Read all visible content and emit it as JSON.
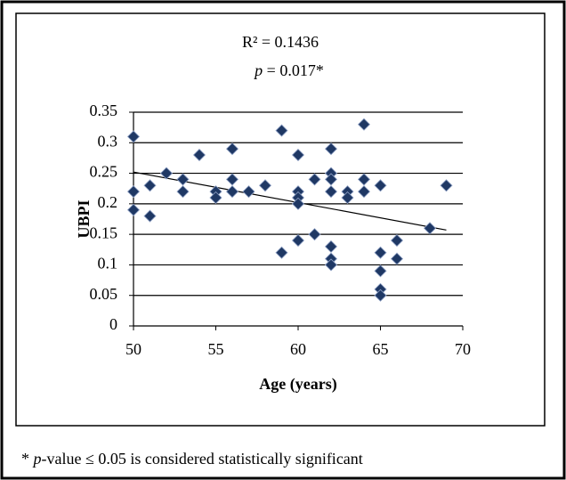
{
  "chart_data": {
    "type": "scatter",
    "annotation_r2": "R² = 0.1436",
    "annotation_p": [
      "p",
      " = 0.017*"
    ],
    "x_label": "Age (years)",
    "y_label": "UBPI",
    "xlim": [
      50,
      70
    ],
    "xticks": [
      50,
      55,
      60,
      65,
      70
    ],
    "ylim": [
      0,
      0.35
    ],
    "yticks": [
      0,
      0.05,
      0.1,
      0.15,
      0.2,
      0.25,
      0.3,
      0.35
    ],
    "grid": true,
    "color": "#1f3864",
    "x": [
      50,
      50,
      50,
      51,
      51,
      52,
      53,
      53,
      54,
      55,
      55,
      56,
      56,
      56,
      57,
      58,
      59,
      59,
      60,
      60,
      60,
      60,
      60,
      61,
      61,
      62,
      62,
      62,
      62,
      62,
      62,
      62,
      63,
      63,
      64,
      64,
      64,
      65,
      65,
      65,
      65,
      65,
      66,
      66,
      68,
      69
    ],
    "y": [
      0.31,
      0.22,
      0.19,
      0.23,
      0.18,
      0.25,
      0.24,
      0.22,
      0.28,
      0.22,
      0.21,
      0.29,
      0.24,
      0.22,
      0.22,
      0.23,
      0.32,
      0.12,
      0.28,
      0.22,
      0.21,
      0.2,
      0.14,
      0.24,
      0.15,
      0.29,
      0.25,
      0.24,
      0.22,
      0.13,
      0.11,
      0.1,
      0.22,
      0.21,
      0.33,
      0.24,
      0.22,
      0.23,
      0.12,
      0.09,
      0.06,
      0.05,
      0.14,
      0.11,
      0.16,
      0.23
    ],
    "trendline": {
      "x": [
        50,
        69
      ],
      "y": [
        0.252,
        0.157
      ]
    }
  },
  "footnote": [
    "* ",
    "p",
    "-value ≤ 0.05 is considered statistically significant"
  ]
}
